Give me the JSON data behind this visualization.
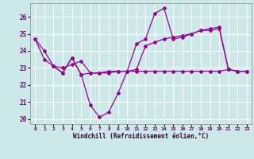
{
  "xlabel": "Windchill (Refroidissement éolien,°C)",
  "background_color": "#cce8e8",
  "grid_color": "#ffffff",
  "line_color": "#990099",
  "xlim": [
    -0.5,
    23.5
  ],
  "ylim": [
    19.7,
    26.8
  ],
  "yticks": [
    20,
    21,
    22,
    23,
    24,
    25,
    26
  ],
  "xticks": [
    0,
    1,
    2,
    3,
    4,
    5,
    6,
    7,
    8,
    9,
    10,
    11,
    12,
    13,
    14,
    15,
    16,
    17,
    18,
    19,
    20,
    21,
    22,
    23
  ],
  "xtick_labels": [
    "0",
    "1",
    "2",
    "3",
    "4",
    "5",
    "6",
    "7",
    "8",
    "9",
    "10",
    "11",
    "12",
    "13",
    "14",
    "15",
    "16",
    "17",
    "18",
    "19",
    "20",
    "21",
    "22",
    "23"
  ],
  "series1_x": [
    0,
    1,
    2,
    3,
    4,
    5,
    6,
    7,
    8,
    9,
    10,
    11,
    12,
    13,
    14,
    15,
    16,
    17,
    18,
    19,
    20,
    21,
    22,
    23
  ],
  "series1_y": [
    24.7,
    24.0,
    23.1,
    22.7,
    23.6,
    22.6,
    20.8,
    20.1,
    20.4,
    21.5,
    22.8,
    24.4,
    24.7,
    26.2,
    26.5,
    24.7,
    24.8,
    25.0,
    25.2,
    25.2,
    25.3,
    22.9,
    22.8,
    22.8
  ],
  "series2_x": [
    0,
    1,
    2,
    3,
    4,
    5,
    6,
    7,
    8,
    9,
    10,
    11,
    12,
    13,
    14,
    15,
    16,
    17,
    18,
    19,
    20,
    21,
    22,
    23
  ],
  "series2_y": [
    24.7,
    23.5,
    23.1,
    23.0,
    23.2,
    23.4,
    22.7,
    22.7,
    22.8,
    22.8,
    22.8,
    22.9,
    24.3,
    24.5,
    24.7,
    24.8,
    24.9,
    25.0,
    25.2,
    25.3,
    25.4,
    22.9,
    22.8,
    22.8
  ],
  "series3_x": [
    2,
    3,
    4,
    5,
    6,
    7,
    8,
    9,
    10,
    11,
    12,
    13,
    14,
    15,
    16,
    17,
    18,
    19,
    20,
    21,
    22,
    23
  ],
  "series3_y": [
    23.1,
    22.7,
    23.6,
    22.6,
    22.7,
    22.7,
    22.7,
    22.8,
    22.8,
    22.8,
    22.8,
    22.8,
    22.8,
    22.8,
    22.8,
    22.8,
    22.8,
    22.8,
    22.8,
    22.9,
    22.8,
    22.8
  ]
}
